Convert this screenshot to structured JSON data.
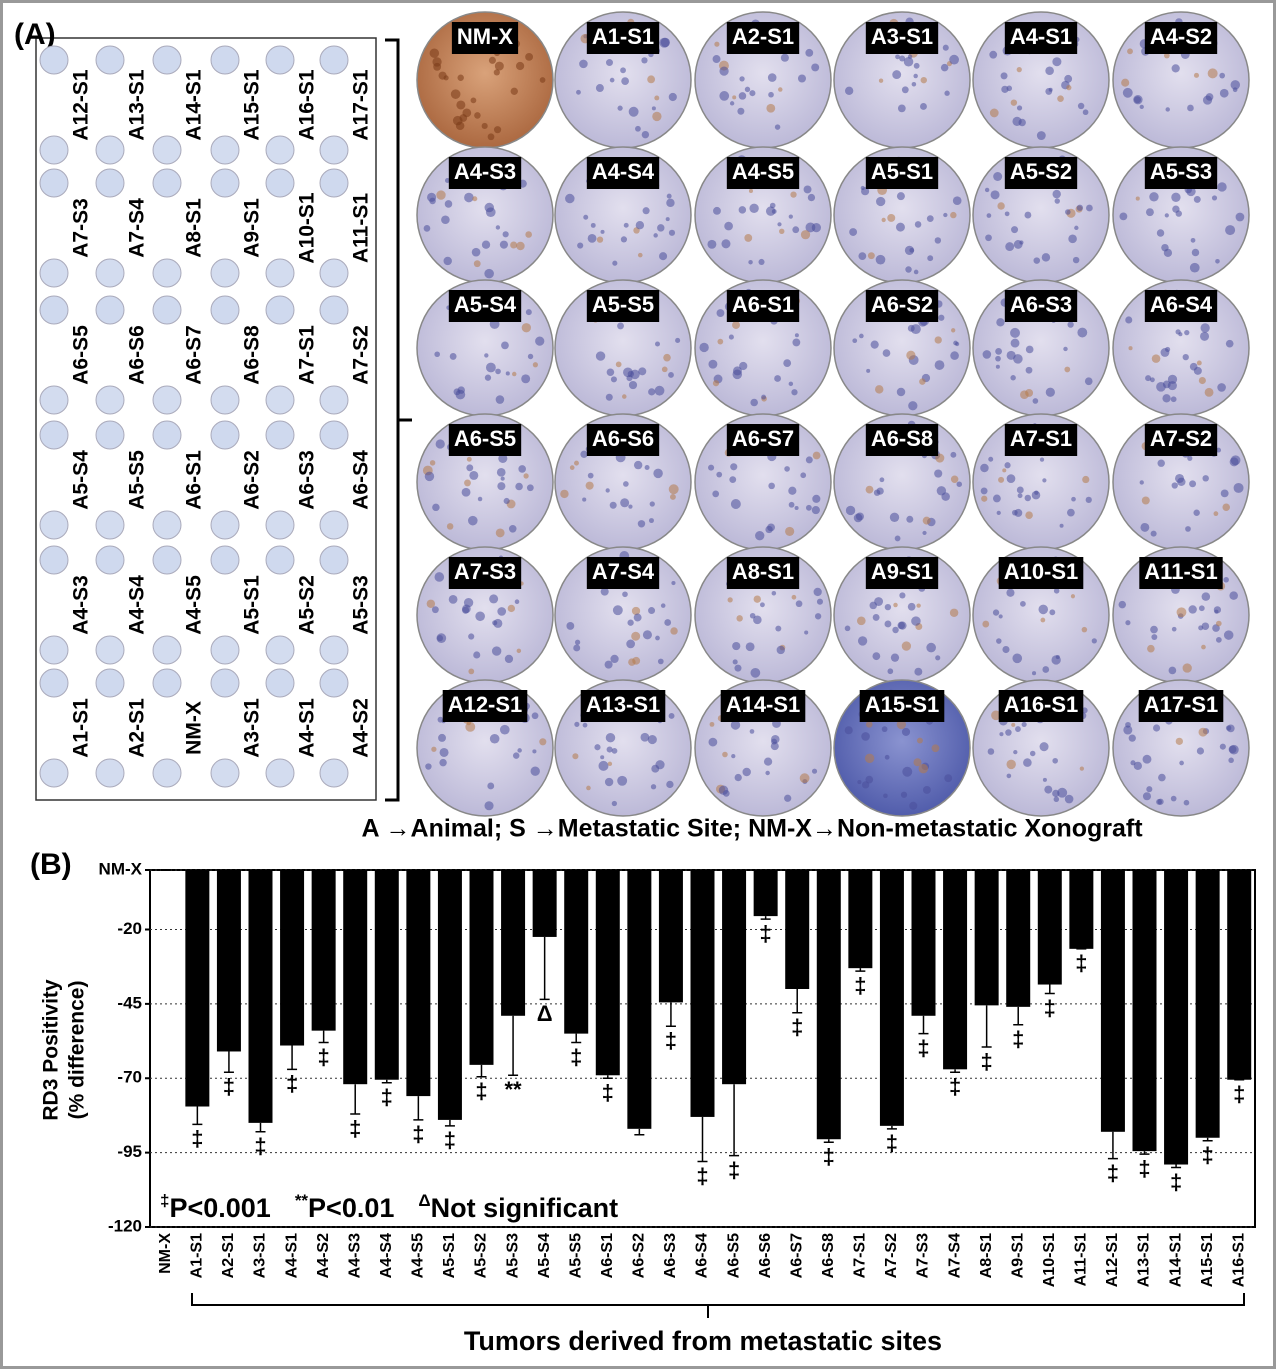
{
  "panel_a": {
    "label": "(A)",
    "overview": [
      [
        "A12-S1",
        "A13-S1",
        "A14-S1",
        "A15-S1",
        "A16-S1",
        "A17-S1"
      ],
      [
        "A7-S3",
        "A7-S4",
        "A8-S1",
        "A9-S1",
        "A10-S1",
        "A11-S1"
      ],
      [
        "A6-S5",
        "A6-S6",
        "A6-S7",
        "A6-S8",
        "A7-S1",
        "A7-S2"
      ],
      [
        "A5-S4",
        "A5-S5",
        "A6-S1",
        "A6-S2",
        "A6-S3",
        "A6-S4"
      ],
      [
        "A4-S3",
        "A4-S4",
        "A4-S5",
        "A5-S1",
        "A5-S2",
        "A5-S3"
      ],
      [
        "A1-S1",
        "A2-S1",
        "NM-X",
        "A3-S1",
        "A4-S1",
        "A4-S2"
      ]
    ],
    "cores": [
      "NM-X",
      "A1-S1",
      "A2-S1",
      "A3-S1",
      "A4-S1",
      "A4-S2",
      "A4-S3",
      "A4-S4",
      "A4-S5",
      "A5-S1",
      "A5-S2",
      "A5-S3",
      "A5-S4",
      "A5-S5",
      "A6-S1",
      "A6-S2",
      "A6-S3",
      "A6-S4",
      "A6-S5",
      "A6-S6",
      "A6-S7",
      "A6-S8",
      "A7-S1",
      "A7-S2",
      "A7-S3",
      "A7-S4",
      "A8-S1",
      "A9-S1",
      "A10-S1",
      "A11-S1",
      "A12-S1",
      "A13-S1",
      "A14-S1",
      "A15-S1",
      "A16-S1",
      "A17-S1"
    ],
    "legend": "A →Animal;  S →Metastatic Site; NM-X→Non-metastatic Xonograft"
  },
  "chart_data": {
    "type": "bar",
    "label": "(B)",
    "y_label": [
      "RD3 Positivity",
      "(% difference)"
    ],
    "x_label": "Tumors derived from metastatic sites",
    "color": "#000000",
    "categories": [
      "NM-X",
      "A1-S1",
      "A2-S1",
      "A3-S1",
      "A4-S1",
      "A4-S2",
      "A4-S3",
      "A4-S4",
      "A4-S5",
      "A5-S1",
      "A5-S2",
      "A5-S3",
      "A5-S4",
      "A5-S5",
      "A6-S1",
      "A6-S2",
      "A6-S3",
      "A6-S4",
      "A6-S5",
      "A6-S6",
      "A6-S7",
      "A6-S8",
      "A7-S1",
      "A7-S2",
      "A7-S3",
      "A7-S4",
      "A8-S1",
      "A9-S1",
      "A10-S1",
      "A11-S1",
      "A12-S1",
      "A13-S1",
      "A14-S1",
      "A15-S1",
      "A16-S1"
    ],
    "values": [
      0,
      -79.5,
      -61,
      -85,
      -59,
      -54,
      -72,
      -70.5,
      -76,
      -84,
      -65.5,
      -49,
      -22.5,
      -55,
      -69,
      -87,
      -44.5,
      -83,
      -72,
      -15.5,
      -40,
      -90.5,
      -33,
      -86,
      -49,
      -67,
      -45.5,
      -46,
      -38.5,
      -26.5,
      -88,
      -94.5,
      -99,
      -90,
      -70.5
    ],
    "errors": [
      0,
      6,
      7,
      3,
      8,
      4,
      10,
      1,
      8,
      2,
      4,
      20,
      21,
      3,
      1,
      2,
      8,
      15,
      24,
      1,
      8,
      1,
      1,
      1,
      6,
      1,
      14,
      6,
      3,
      0,
      9,
      1,
      1,
      1,
      0
    ],
    "significance": [
      null,
      "‡",
      "‡",
      "‡",
      "‡",
      "‡",
      "‡",
      "‡",
      "‡",
      "‡",
      "‡",
      "**",
      "Δ",
      "‡",
      "‡",
      null,
      "‡",
      "‡",
      "‡",
      "‡",
      "‡",
      "‡",
      "‡",
      "‡",
      "‡",
      "‡",
      "‡",
      "‡",
      "‡",
      "‡",
      "‡",
      "‡",
      "‡",
      "‡",
      "‡"
    ],
    "legend": [
      {
        "symbol": "‡",
        "text": "P<0.001"
      },
      {
        "symbol": "**",
        "text": "P<0.01"
      },
      {
        "symbol": "Δ",
        "text": "Not significant"
      }
    ],
    "ylim": [
      -120,
      0
    ],
    "yticks": [
      {
        "value": 0,
        "label": "NM-X"
      },
      -20,
      -45,
      -70,
      -95,
      -120
    ],
    "grid": true
  }
}
